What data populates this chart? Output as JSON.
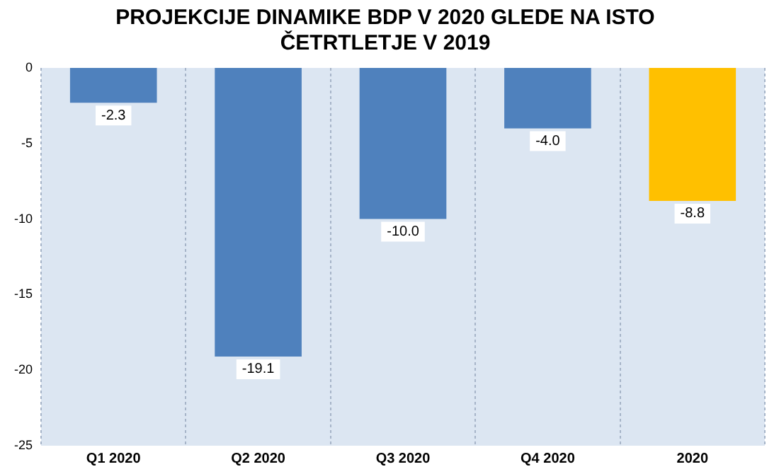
{
  "chart_data": {
    "type": "bar",
    "title": "PROJEKCIJE DINAMIKE BDP V 2020 GLEDE NA ISTO\nČETRTLETJE V 2019",
    "categories": [
      "Q1 2020",
      "Q2 2020",
      "Q3 2020",
      "Q4 2020",
      "2020"
    ],
    "values": [
      -2.3,
      -19.1,
      -10.0,
      -4.0,
      -8.8
    ],
    "value_labels": [
      "-2.3",
      "-19.1",
      "-10.0",
      "-4.0",
      "-8.8"
    ],
    "colors": [
      "#4f81bd",
      "#4f81bd",
      "#4f81bd",
      "#4f81bd",
      "#ffc000"
    ],
    "ylim": [
      -25,
      0
    ],
    "yticks": [
      -25,
      -20,
      -15,
      -10,
      -5,
      0
    ],
    "grid": "x",
    "legend": false
  }
}
